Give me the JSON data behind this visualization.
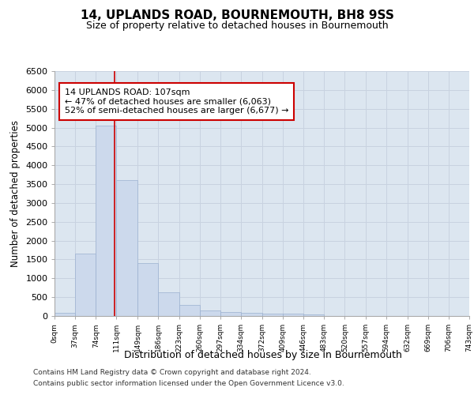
{
  "title": "14, UPLANDS ROAD, BOURNEMOUTH, BH8 9SS",
  "subtitle": "Size of property relative to detached houses in Bournemouth",
  "xlabel": "Distribution of detached houses by size in Bournemouth",
  "ylabel": "Number of detached properties",
  "footer_line1": "Contains HM Land Registry data © Crown copyright and database right 2024.",
  "footer_line2": "Contains public sector information licensed under the Open Government Licence v3.0.",
  "bar_edges": [
    0,
    37,
    74,
    111,
    149,
    186,
    223,
    260,
    297,
    334,
    372,
    409,
    446,
    483,
    520,
    557,
    594,
    632,
    669,
    706,
    743
  ],
  "bar_heights": [
    75,
    1650,
    5060,
    3600,
    1410,
    620,
    290,
    145,
    100,
    75,
    60,
    55,
    50,
    0,
    0,
    0,
    0,
    0,
    0,
    0
  ],
  "bar_color": "#ccd9ec",
  "bar_edge_color": "#9ab0d0",
  "property_line_x": 107,
  "property_line_color": "#cc0000",
  "annotation_line1": "14 UPLANDS ROAD: 107sqm",
  "annotation_line2": "← 47% of detached houses are smaller (6,063)",
  "annotation_line3": "52% of semi-detached houses are larger (6,677) →",
  "annotation_box_edge_color": "#cc0000",
  "annotation_box_facecolor": "#ffffff",
  "ylim_max": 6500,
  "yticks": [
    0,
    500,
    1000,
    1500,
    2000,
    2500,
    3000,
    3500,
    4000,
    4500,
    5000,
    5500,
    6000,
    6500
  ],
  "grid_color": "#c8d2e0",
  "fig_bg_color": "#ffffff",
  "plot_bg_color": "#dce6f0"
}
